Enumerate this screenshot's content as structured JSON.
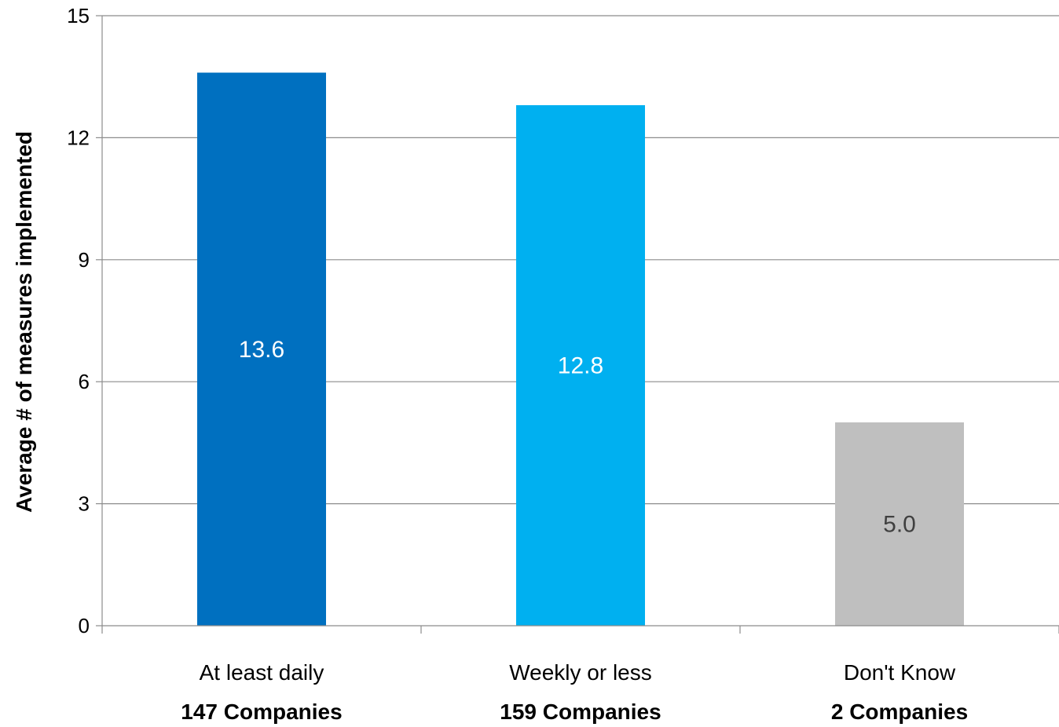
{
  "chart_data": {
    "type": "bar",
    "title": "",
    "xlabel": "",
    "ylabel": "Average # of measures implemented",
    "ylim": [
      0,
      15
    ],
    "yticks": [
      0,
      3,
      6,
      9,
      12,
      15
    ],
    "grid": true,
    "legend": "none",
    "categories": [
      "At least daily",
      "Weekly or less",
      "Don't Know"
    ],
    "category_sublabels": [
      "147 Companies",
      "159 Companies",
      "2 Companies"
    ],
    "values": [
      13.6,
      12.8,
      5.0
    ],
    "data_labels": [
      "13.6",
      "12.8",
      "5.0"
    ],
    "bar_colors": [
      "#0070C0",
      "#00B0F0",
      "#BFBFBF"
    ],
    "data_label_colors": [
      "#ffffff",
      "#ffffff",
      "#404040"
    ]
  }
}
